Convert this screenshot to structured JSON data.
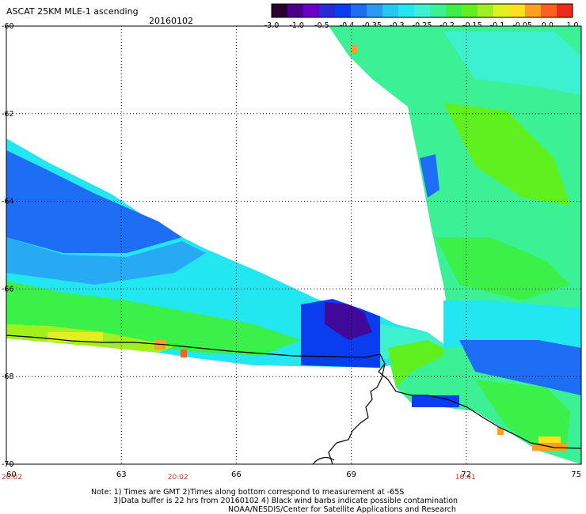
{
  "header": {
    "title": "ASCAT 25KM MLE-1 ascending",
    "date": "20160102"
  },
  "colorbar": {
    "colors": [
      "#2a0030",
      "#4b008a",
      "#6a00c8",
      "#2a2ad8",
      "#0a3cf0",
      "#1e6ef5",
      "#2a9af5",
      "#24c8f5",
      "#22e6f0",
      "#3cf0d0",
      "#3cf096",
      "#3cf04a",
      "#60f020",
      "#a0f020",
      "#e0f020",
      "#ffe020",
      "#ffa020",
      "#ff6020",
      "#f02a1a"
    ],
    "labels": [
      "-3.0",
      "-1.0",
      "-0.5",
      "-0.4",
      "-0.35",
      "-0.3",
      "-0.25",
      "-0.2",
      "-0.15",
      "-0.1",
      "-0.05",
      "0.0",
      "1.0"
    ]
  },
  "axes": {
    "x_ticks": [
      "60",
      "63",
      "66",
      "69",
      "72",
      "75"
    ],
    "y_ticks": [
      "-60",
      "-62",
      "-64",
      "-66",
      "-68",
      "-70"
    ]
  },
  "time_labels": [
    {
      "text": "20:02",
      "lon": 60
    },
    {
      "text": "20:02",
      "lon": 64.5
    },
    {
      "text": "16:41",
      "lon": 72
    }
  ],
  "notes": {
    "line1": "Note: 1) Times are GMT 2)Times along bottom correspond to measurement at -65S",
    "line2": "3)Data buffer is 22 hrs from 20160102 4) Black wind barbs indicate possible contamination",
    "line3": "NOAA/NESDIS/Center for Satellite Applications and Research"
  }
}
